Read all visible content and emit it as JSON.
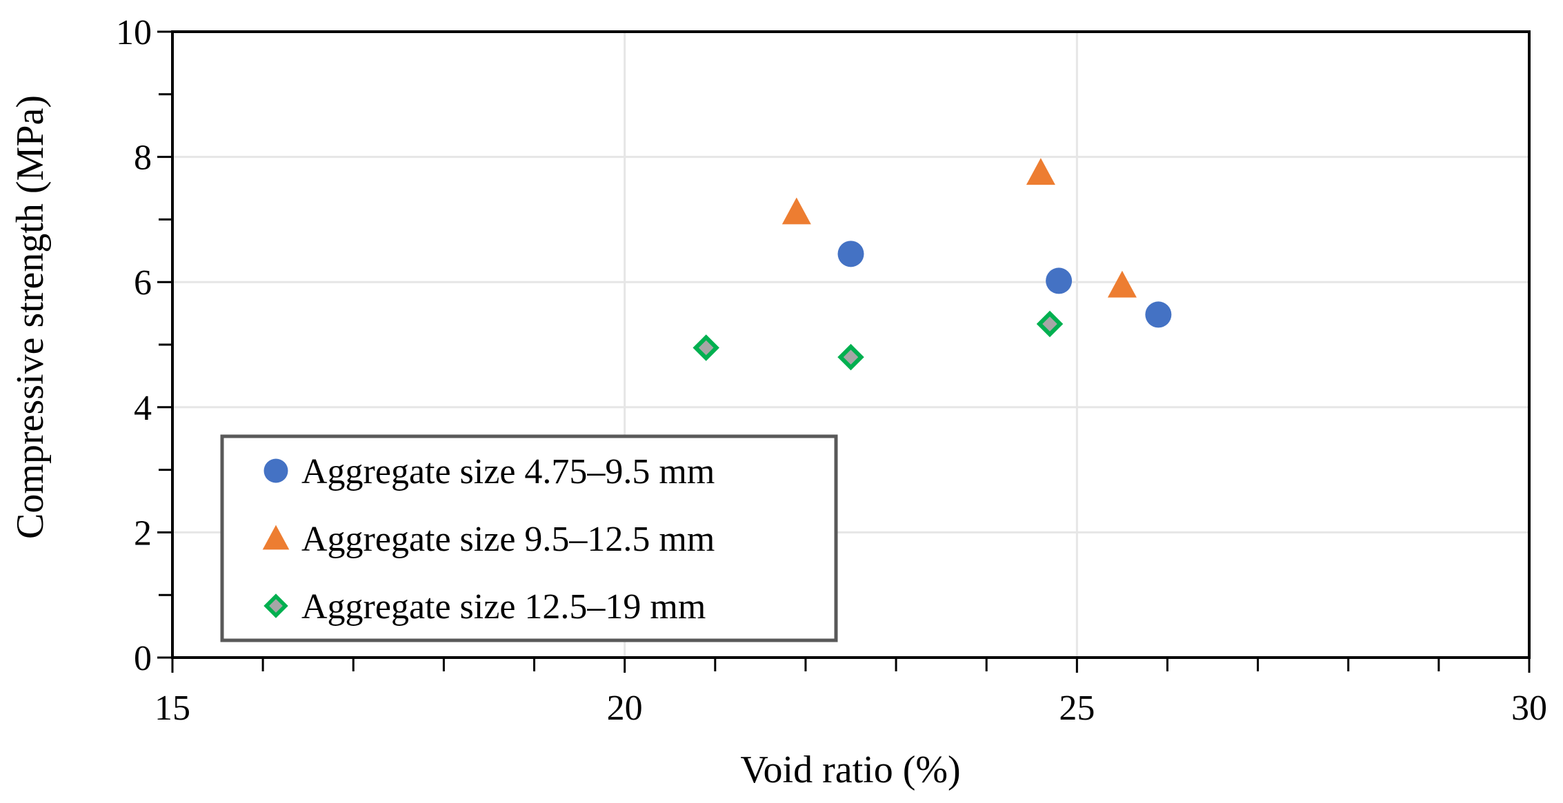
{
  "chart_data": {
    "type": "scatter",
    "xlabel": "Void ratio (%)",
    "ylabel": "Compressive strength (MPa)",
    "xlim": [
      15,
      30
    ],
    "ylim": [
      0,
      10
    ],
    "x_ticks": [
      15,
      20,
      25,
      30
    ],
    "y_ticks": [
      0,
      2,
      4,
      6,
      8,
      10
    ],
    "x_minor_step": 1,
    "y_minor_step": 1,
    "grid": true,
    "legend_position": "bottom-left",
    "series": [
      {
        "name": "Aggregate size 4.75–9.5 mm",
        "marker": "circle",
        "color": "#4472C4",
        "points": [
          {
            "x": 22.5,
            "y": 6.45
          },
          {
            "x": 24.8,
            "y": 6.02
          },
          {
            "x": 25.9,
            "y": 5.48
          }
        ]
      },
      {
        "name": "Aggregate size 9.5–12.5 mm",
        "marker": "triangle",
        "color": "#ED7D31",
        "points": [
          {
            "x": 21.9,
            "y": 7.12
          },
          {
            "x": 24.6,
            "y": 7.75
          },
          {
            "x": 25.5,
            "y": 5.95
          }
        ]
      },
      {
        "name": "Aggregate size 12.5–19 mm",
        "marker": "diamond",
        "color": "#00B050",
        "fill": "#A6A6A6",
        "points": [
          {
            "x": 20.9,
            "y": 4.95
          },
          {
            "x": 22.5,
            "y": 4.8
          },
          {
            "x": 24.7,
            "y": 5.33
          }
        ]
      }
    ]
  }
}
